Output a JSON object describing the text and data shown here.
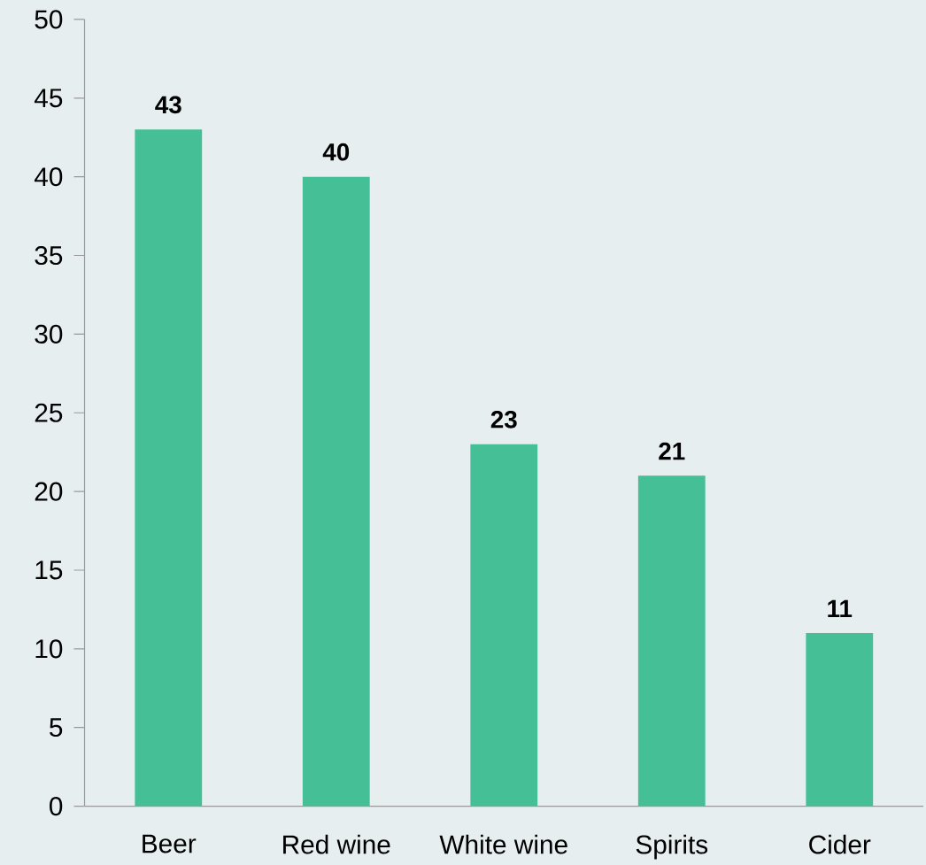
{
  "chart_data": {
    "type": "bar",
    "categories": [
      "Beer",
      "Red wine",
      "White wine",
      "Spirits",
      "Cider"
    ],
    "values": [
      43,
      40,
      23,
      21,
      11
    ],
    "color": "#44bf96",
    "ylim": [
      0,
      50
    ],
    "yticks": [
      0,
      5,
      10,
      15,
      20,
      25,
      30,
      35,
      40,
      45,
      50
    ],
    "data_labels": true,
    "grid": false
  }
}
